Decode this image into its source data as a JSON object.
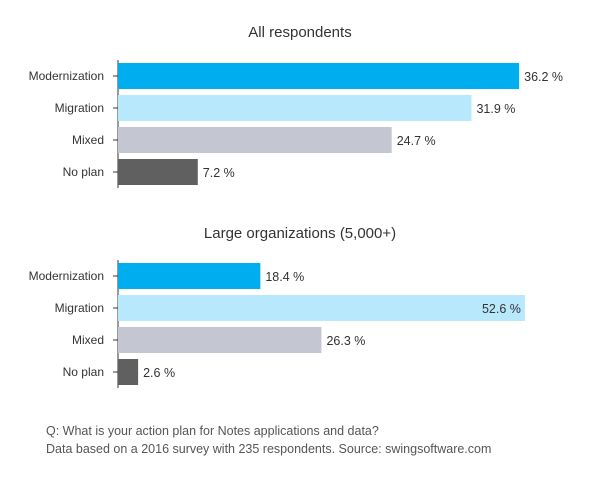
{
  "chart_data": [
    {
      "type": "bar",
      "orientation": "horizontal",
      "title": "All respondents",
      "categories": [
        "Modernization",
        "Migration",
        "Mixed",
        "No plan"
      ],
      "values": [
        36.2,
        31.9,
        24.7,
        7.2
      ],
      "value_labels": [
        "36.2 %",
        "31.9 %",
        "24.7 %",
        "7.2 %"
      ],
      "colors": [
        "#00aeef",
        "#b8e8fb",
        "#c4c7d1",
        "#606060"
      ],
      "xlim": [
        0,
        37
      ],
      "grid": false
    },
    {
      "type": "bar",
      "orientation": "horizontal",
      "title": "Large organizations (5,000+)",
      "categories": [
        "Modernization",
        "Migration",
        "Mixed",
        "No plan"
      ],
      "values": [
        18.4,
        52.6,
        26.3,
        2.6
      ],
      "value_labels": [
        "18.4 %",
        "52.6 %",
        "26.3 %",
        "2.6 %"
      ],
      "colors": [
        "#00aeef",
        "#b8e8fb",
        "#c4c7d1",
        "#606060"
      ],
      "xlim": [
        0,
        53
      ],
      "grid": false
    }
  ],
  "notes": {
    "question": "Q: What is your action plan for Notes applications and data?",
    "source": "Data based on a 2016 survey with 235 respondents. Source: swingsoftware.com"
  }
}
